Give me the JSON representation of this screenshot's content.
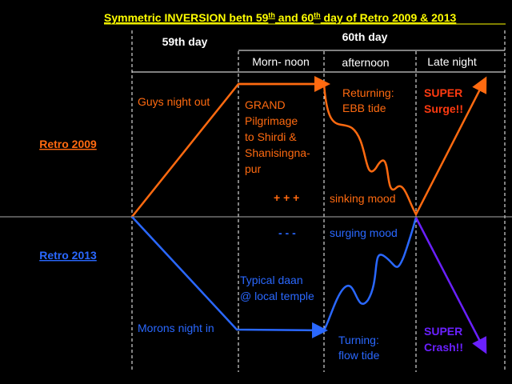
{
  "title": {
    "parts": [
      "Symmetric INVERSION betn 59",
      "th",
      " and 60",
      "th",
      " day of Retro 2009 & 2013"
    ]
  },
  "headers": {
    "day59": "59th day",
    "day60": "60th day",
    "morning": "Morn- noon",
    "afternoon": "afternoon",
    "night": "Late night"
  },
  "rows": {
    "retro2009": "Retro 2009",
    "retro2013": "Retro 2013"
  },
  "notes_2009": {
    "night_out": "Guys night out",
    "pilgrimage": [
      "GRAND",
      "Pilgrimage",
      "to Shirdi &",
      "Shanisingna-",
      "pur"
    ],
    "returning": [
      "Returning:",
      "EBB tide"
    ],
    "surge": [
      "SUPER",
      "Surge!!"
    ],
    "plus": "+ + +",
    "mood": "sinking mood"
  },
  "notes_2013": {
    "night_in": "Morons night in",
    "daan": [
      "Typical daan",
      "@ local temple"
    ],
    "turning": [
      "Turning:",
      "flow tide"
    ],
    "crash": [
      "SUPER",
      "Crash!!"
    ],
    "minus": "- - -",
    "mood": "surging mood"
  }
}
